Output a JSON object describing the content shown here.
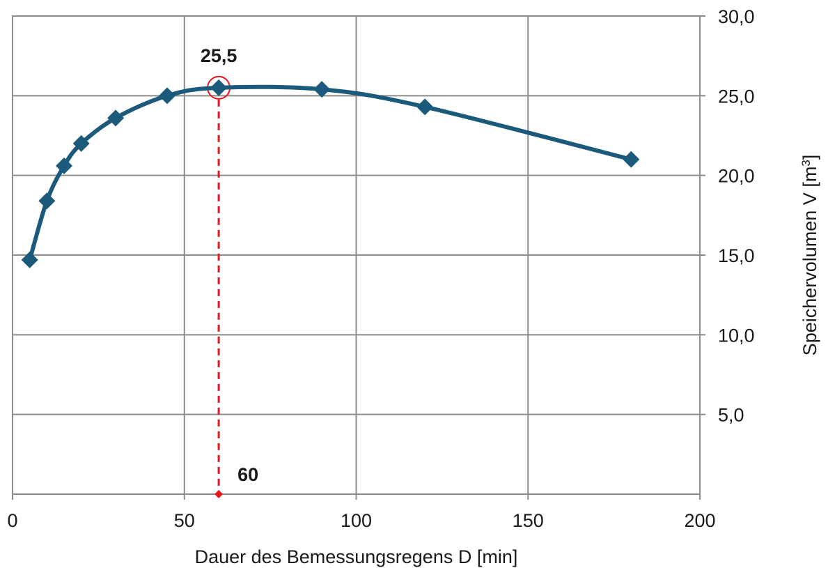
{
  "chart_data": {
    "type": "line",
    "title": "",
    "xlabel": "Dauer des Bemessungsregens  D [min]",
    "ylabel_main": "Speichervolumen V [m",
    "ylabel_sup": "3",
    "ylabel_end": "]",
    "xlim": [
      0,
      200
    ],
    "ylim": [
      0,
      30
    ],
    "x_ticks": [
      0,
      50,
      100,
      150,
      200
    ],
    "x_tick_labels": [
      "0",
      "50",
      "100",
      "150",
      "200"
    ],
    "y_ticks": [
      5,
      10,
      15,
      20,
      25,
      30
    ],
    "y_tick_labels": [
      "5,0",
      "10,0",
      "15,0",
      "20,0",
      "25,0",
      "30,0"
    ],
    "y_axis_side": "right",
    "grid": true,
    "series": [
      {
        "color": "#1b5a7a",
        "marker": "diamond",
        "x": [
          5,
          10,
          15,
          20,
          30,
          45,
          60,
          90,
          120,
          180
        ],
        "y": [
          14.7,
          18.4,
          20.6,
          22.0,
          23.6,
          25.0,
          25.5,
          25.4,
          24.3,
          21.0
        ]
      }
    ],
    "annotations": {
      "peak_label": "25,5",
      "peak_x": 60,
      "peak_y": 25.5,
      "duration_label": "60",
      "color": "#e8141e"
    }
  }
}
